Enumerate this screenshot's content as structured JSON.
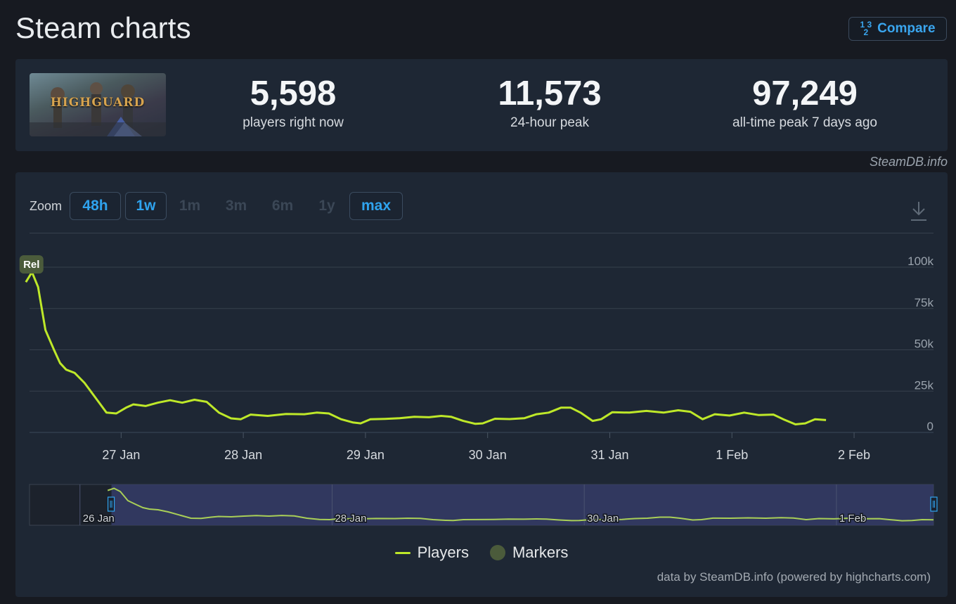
{
  "page": {
    "title": "Steam charts",
    "compare_label": "Compare",
    "watermark": "SteamDB.info"
  },
  "game": {
    "thumbnail_text": "HIGHGUARD"
  },
  "stats": [
    {
      "value": "5,598",
      "label": "players right now"
    },
    {
      "value": "11,573",
      "label": "24-hour peak"
    },
    {
      "value": "97,249",
      "label": "all-time peak 7 days ago"
    }
  ],
  "zoom": {
    "label": "Zoom",
    "options": [
      {
        "label": "48h",
        "state": "active"
      },
      {
        "label": "1w",
        "state": "active"
      },
      {
        "label": "1m",
        "state": "disabled"
      },
      {
        "label": "3m",
        "state": "disabled"
      },
      {
        "label": "6m",
        "state": "disabled"
      },
      {
        "label": "1y",
        "state": "disabled"
      },
      {
        "label": "max",
        "state": "active"
      }
    ]
  },
  "legend": {
    "players": "Players",
    "markers": "Markers"
  },
  "credits": "data by SteamDB.info (powered by highcharts.com)",
  "colors": {
    "series": "#bee829",
    "marker": "#4b5b3b",
    "accent": "#2fa3ee",
    "navigator_selection": "#353c69"
  },
  "chart_data": {
    "type": "line",
    "series": [
      {
        "name": "Players",
        "points": [
          [
            26.22,
            91000
          ],
          [
            26.27,
            97000
          ],
          [
            26.32,
            88000
          ],
          [
            26.38,
            62000
          ],
          [
            26.45,
            50000
          ],
          [
            26.5,
            42000
          ],
          [
            26.55,
            38000
          ],
          [
            26.62,
            36000
          ],
          [
            26.7,
            30000
          ],
          [
            26.8,
            20000
          ],
          [
            26.88,
            12000
          ],
          [
            26.96,
            11500
          ],
          [
            27.04,
            15000
          ],
          [
            27.1,
            17000
          ],
          [
            27.2,
            16000
          ],
          [
            27.3,
            18000
          ],
          [
            27.4,
            19500
          ],
          [
            27.5,
            18000
          ],
          [
            27.6,
            19800
          ],
          [
            27.7,
            18500
          ],
          [
            27.8,
            12000
          ],
          [
            27.9,
            8500
          ],
          [
            27.98,
            8000
          ],
          [
            28.06,
            10800
          ],
          [
            28.2,
            10000
          ],
          [
            28.35,
            11200
          ],
          [
            28.5,
            11000
          ],
          [
            28.6,
            12000
          ],
          [
            28.7,
            11500
          ],
          [
            28.8,
            8000
          ],
          [
            28.9,
            6000
          ],
          [
            28.96,
            5500
          ],
          [
            29.04,
            8000
          ],
          [
            29.16,
            8200
          ],
          [
            29.28,
            8600
          ],
          [
            29.4,
            9500
          ],
          [
            29.52,
            9200
          ],
          [
            29.62,
            10000
          ],
          [
            29.7,
            9500
          ],
          [
            29.8,
            7000
          ],
          [
            29.9,
            5200
          ],
          [
            29.96,
            5500
          ],
          [
            30.06,
            8300
          ],
          [
            30.18,
            8100
          ],
          [
            30.3,
            8600
          ],
          [
            30.4,
            11000
          ],
          [
            30.5,
            12000
          ],
          [
            30.6,
            15000
          ],
          [
            30.68,
            15000
          ],
          [
            30.76,
            12000
          ],
          [
            30.86,
            7000
          ],
          [
            30.93,
            8000
          ],
          [
            31.02,
            12200
          ],
          [
            31.16,
            12000
          ],
          [
            31.3,
            13000
          ],
          [
            31.44,
            12000
          ],
          [
            31.56,
            13400
          ],
          [
            31.66,
            12500
          ],
          [
            31.76,
            8000
          ],
          [
            31.86,
            11000
          ],
          [
            31.98,
            10200
          ],
          [
            32.1,
            12000
          ],
          [
            32.22,
            10500
          ],
          [
            32.34,
            10800
          ],
          [
            32.42,
            8000
          ],
          [
            32.52,
            4900
          ],
          [
            32.6,
            5500
          ],
          [
            32.68,
            8000
          ],
          [
            32.77,
            7500
          ]
        ]
      }
    ],
    "markers": [
      {
        "label": "Rel",
        "x": 26.26
      }
    ],
    "x_ticks": [
      {
        "value": 27,
        "label": "27 Jan"
      },
      {
        "value": 28,
        "label": "28 Jan"
      },
      {
        "value": 29,
        "label": "29 Jan"
      },
      {
        "value": 30,
        "label": "30 Jan"
      },
      {
        "value": 31,
        "label": "31 Jan"
      },
      {
        "value": 32,
        "label": "1 Feb"
      },
      {
        "value": 33,
        "label": "2 Feb"
      }
    ],
    "y_ticks": [
      {
        "value": 0,
        "label": "0"
      },
      {
        "value": 25000,
        "label": "25k"
      },
      {
        "value": 50000,
        "label": "50k"
      },
      {
        "value": 75000,
        "label": "75k"
      },
      {
        "value": 100000,
        "label": "100k"
      }
    ],
    "xlim": [
      26.25,
      33.65
    ],
    "ylim": [
      0,
      100000
    ],
    "x_unit": "days since 1 Jan (Jan 26 2026 onward)",
    "grid": true,
    "legend_position": "bottom-center",
    "navigator": {
      "xlim": [
        25.6,
        32.77
      ],
      "selection": [
        26.25,
        32.77
      ],
      "labels": [
        {
          "value": 26,
          "label": "26 Jan"
        },
        {
          "value": 28,
          "label": "28 Jan"
        },
        {
          "value": 30,
          "label": "30 Jan"
        },
        {
          "value": 32,
          "label": "1 Feb"
        }
      ]
    }
  }
}
